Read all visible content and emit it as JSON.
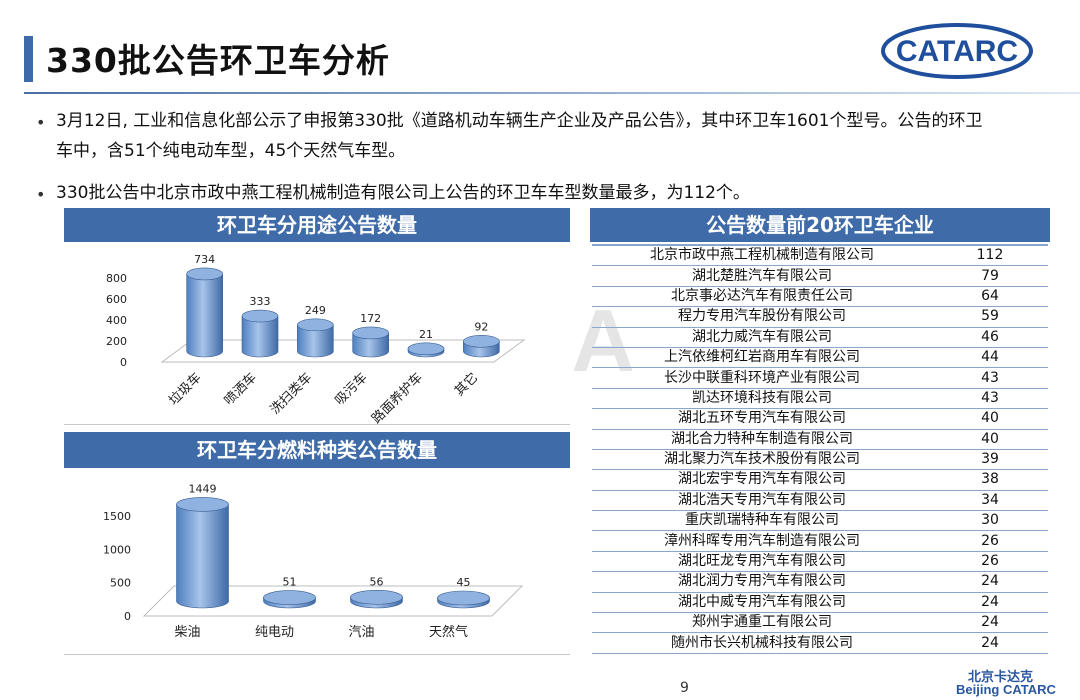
{
  "title": "330批公告环卫车分析",
  "logo_text": "CATARC",
  "watermark": "Beijing CA",
  "bullets": [
    {
      "line1": "3月12日, 工业和信息化部公示了申报第330批《道路机动车辆生产企业及产品公告》，其中环卫车1601个型号。公告的环卫",
      "line2": "车中，含51个纯电动车型，45个天然气车型。"
    },
    {
      "line1": "330批公告中北京市政中燕工程机械制造有限公司上公告的环卫车车型数量最多，为112个。"
    }
  ],
  "panels": {
    "usage_title": "环卫车分用途公告数量",
    "fuel_title": "环卫车分燃料种类公告数量",
    "top20_title": "公告数量前20环卫车企业"
  },
  "chart_data": [
    {
      "type": "bar",
      "title": "环卫车分用途公告数量",
      "categories": [
        "垃圾车",
        "喷洒车",
        "洗扫类车",
        "吸污车",
        "路面养护车",
        "其它"
      ],
      "values": [
        734,
        333,
        249,
        172,
        21,
        92
      ],
      "yticks": [
        0,
        200,
        400,
        600,
        800
      ],
      "ylim": [
        0,
        800
      ],
      "grid": false,
      "style": "3d-cylinder",
      "color": "#6f9bd3"
    },
    {
      "type": "bar",
      "title": "环卫车分燃料种类公告数量",
      "categories": [
        "柴油",
        "纯电动",
        "汽油",
        "天然气"
      ],
      "values": [
        1449,
        51,
        56,
        45
      ],
      "yticks": [
        0,
        500,
        1000,
        1500
      ],
      "ylim": [
        0,
        1500
      ],
      "grid": false,
      "style": "3d-cylinder",
      "color": "#6f9bd3"
    },
    {
      "type": "table",
      "title": "公告数量前20环卫车企业",
      "rows": [
        [
          "北京市政中燕工程机械制造有限公司",
          "112"
        ],
        [
          "湖北楚胜汽车有限公司",
          "79"
        ],
        [
          "北京事必达汽车有限责任公司",
          "64"
        ],
        [
          "程力专用汽车股份有限公司",
          "59"
        ],
        [
          "湖北力威汽车有限公司",
          "46"
        ],
        [
          "上汽依维柯红岩商用车有限公司",
          "44"
        ],
        [
          "长沙中联重科环境产业有限公司",
          "43"
        ],
        [
          "凯达环境科技有限公司",
          "43"
        ],
        [
          "湖北五环专用汽车有限公司",
          "40"
        ],
        [
          "湖北合力特种车制造有限公司",
          "40"
        ],
        [
          "湖北聚力汽车技术股份有限公司",
          "39"
        ],
        [
          "湖北宏宇专用汽车有限公司",
          "38"
        ],
        [
          "湖北浩天专用汽车有限公司",
          "34"
        ],
        [
          "重庆凯瑞特种车有限公司",
          "30"
        ],
        [
          "漳州科晖专用汽车制造有限公司",
          "26"
        ],
        [
          "湖北旺龙专用汽车有限公司",
          "26"
        ],
        [
          "湖北润力专用汽车有限公司",
          "24"
        ],
        [
          "湖北中威专用汽车有限公司",
          "24"
        ],
        [
          "郑州宇通重工有限公司",
          "24"
        ],
        [
          "随州市长兴机械科技有限公司",
          "24"
        ]
      ]
    }
  ],
  "footer": {
    "page": "9",
    "brand_cn": "北京卡达克",
    "brand_en": "Beijing CATARC"
  }
}
